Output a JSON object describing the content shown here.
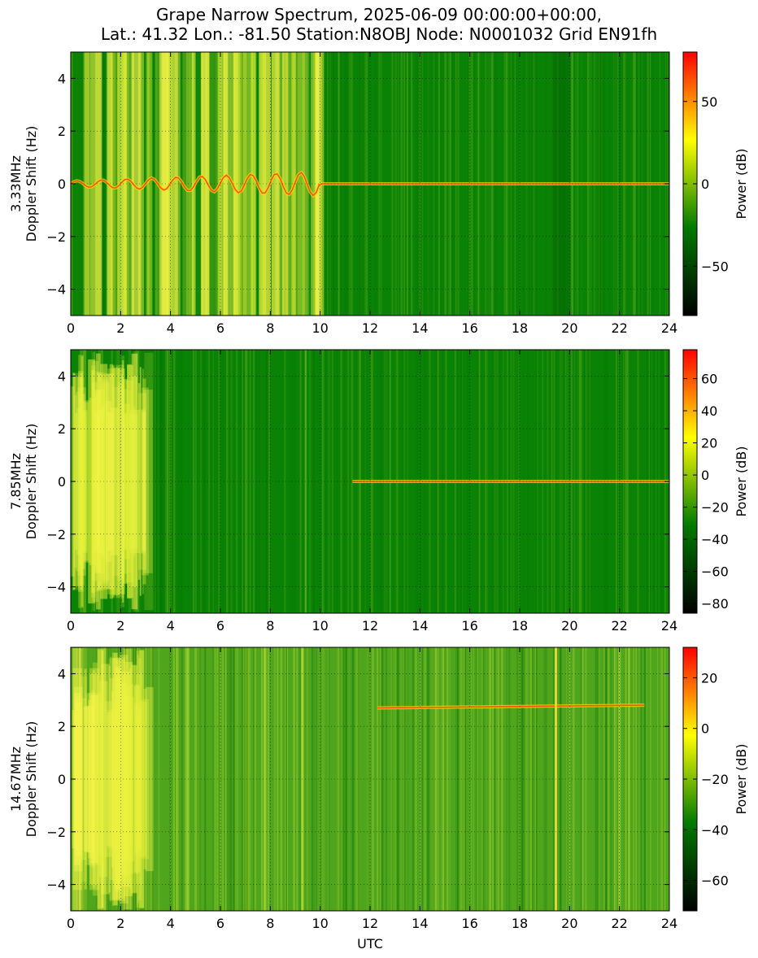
{
  "title_lines": [
    "Grape Narrow Spectrum, 2025-06-09 00:00:00+00:00,",
    "Lat.: 41.32 Lon.: -81.50 Station:N8OBJ Node: N0001032 Grid EN91fh"
  ],
  "chart_data": [
    {
      "type": "heatmap",
      "band": "3.33MHz",
      "ylabel_lines": [
        "3.33MHz",
        "Doppler Shift (Hz)"
      ],
      "xlabel": "",
      "xlim": [
        0,
        24
      ],
      "xticks": [
        0,
        2,
        4,
        6,
        8,
        10,
        12,
        14,
        16,
        18,
        20,
        22,
        24
      ],
      "ylim": [
        -5,
        5
      ],
      "yticks": [
        -4,
        -2,
        0,
        2,
        4
      ],
      "grid": true,
      "colorbar": {
        "label": "Power (dB)",
        "range": [
          -80,
          80
        ],
        "ticks": [
          -50,
          0,
          50
        ]
      },
      "colormap": [
        "#000000",
        "#007a00",
        "#ffff00",
        "#ff0000"
      ],
      "carrier": {
        "doppler_hz": 0.0,
        "start_utc": 0,
        "end_utc": 24
      },
      "bright_region_utc": [
        0.5,
        10
      ],
      "dark_bands_utc": [
        19.3,
        20.0
      ]
    },
    {
      "type": "heatmap",
      "band": "7.85MHz",
      "ylabel_lines": [
        "7.85MHz",
        "Doppler Shift (Hz)"
      ],
      "xlabel": "",
      "xlim": [
        0,
        24
      ],
      "xticks": [
        0,
        2,
        4,
        6,
        8,
        10,
        12,
        14,
        16,
        18,
        20,
        22,
        24
      ],
      "ylim": [
        -5,
        5
      ],
      "yticks": [
        -4,
        -2,
        0,
        2,
        4
      ],
      "grid": true,
      "colorbar": {
        "label": "Power (dB)",
        "range": [
          -86,
          78
        ],
        "ticks": [
          -80,
          -60,
          -40,
          -20,
          0,
          20,
          40,
          60
        ]
      },
      "colormap": [
        "#000000",
        "#007a00",
        "#ffff00",
        "#ff0000"
      ],
      "carrier": {
        "doppler_hz": 0.0,
        "start_utc": 11.3,
        "end_utc": 24
      },
      "bright_region_utc": [
        0,
        3
      ]
    },
    {
      "type": "heatmap",
      "band": "14.67MHz",
      "ylabel_lines": [
        "14.67MHz",
        "Doppler Shift (Hz)"
      ],
      "xlabel": "UTC",
      "xlim": [
        0,
        24
      ],
      "xticks": [
        0,
        2,
        4,
        6,
        8,
        10,
        12,
        14,
        16,
        18,
        20,
        22,
        24
      ],
      "ylim": [
        -5,
        5
      ],
      "yticks": [
        -4,
        -2,
        0,
        2,
        4
      ],
      "grid": true,
      "colorbar": {
        "label": "Power (dB)",
        "range": [
          -72,
          32
        ],
        "ticks": [
          -60,
          -40,
          -20,
          0,
          20
        ]
      },
      "colormap": [
        "#000000",
        "#007a00",
        "#ffff00",
        "#ff0000"
      ],
      "carrier": {
        "doppler_hz": 2.7,
        "start_utc": 12.3,
        "end_utc": 23.0
      },
      "vertical_line_utc": 19.4,
      "bright_region_utc": [
        0,
        3
      ]
    }
  ]
}
